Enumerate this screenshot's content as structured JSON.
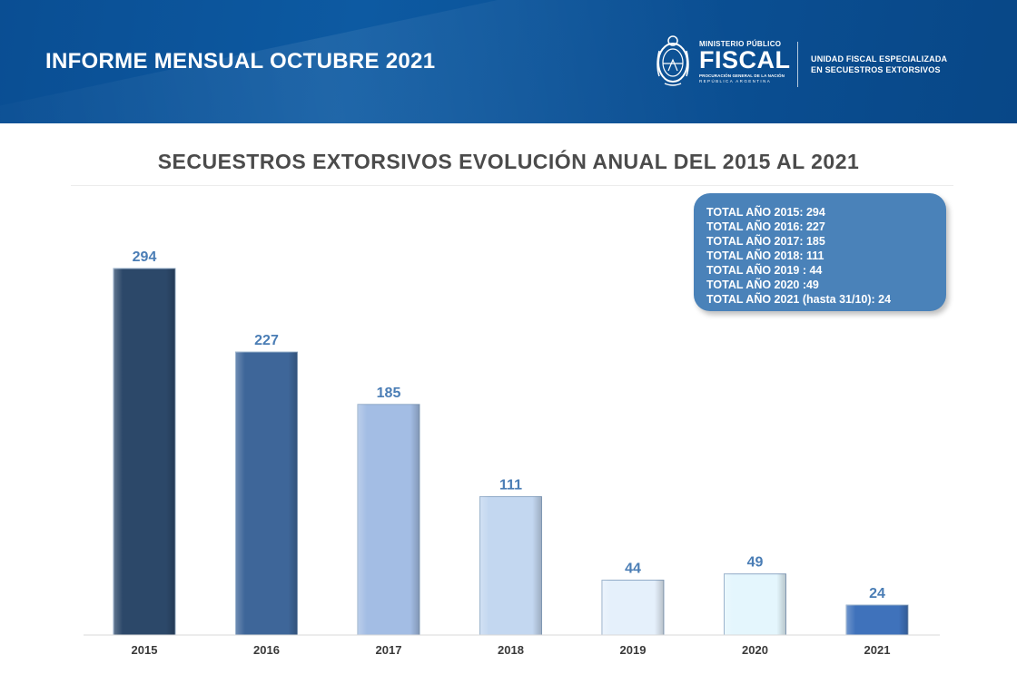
{
  "header": {
    "title": "INFORME MENSUAL OCTUBRE 2021",
    "logo": {
      "top_line": "MINISTERIO PÚBLICO",
      "main": "FISCAL",
      "sub_line": "PROCURACIÓN GENERAL DE LA NACIÓN",
      "country_line": "REPÚBLICA ARGENTINA"
    },
    "unit_line1": "UNIDAD FISCAL ESPECIALIZADA",
    "unit_line2": "EN SECUESTROS EXTORSIVOS"
  },
  "totals_box": {
    "lines": [
      "TOTAL AÑO 2015: 294",
      "TOTAL AÑO 2016: 227",
      "TOTAL AÑO 2017: 185",
      "TOTAL AÑO 2018: 111",
      "TOTAL AÑO 2019 : 44",
      "TOTAL AÑO 2020 :49",
      "TOTAL AÑO 2021 (hasta 31/10): 24"
    ]
  },
  "chart_data": {
    "type": "bar",
    "title": "SECUESTROS EXTORSIVOS EVOLUCIÓN ANUAL DEL 2015 AL 2021",
    "categories": [
      "2015",
      "2016",
      "2017",
      "2018",
      "2019",
      "2020",
      "2021"
    ],
    "values": [
      294,
      227,
      185,
      111,
      44,
      49,
      24
    ],
    "data_labels": [
      "294",
      "227",
      "185",
      "111",
      "44",
      "49",
      "24"
    ],
    "bar_colors": [
      "#2c4869",
      "#3e6699",
      "#a3bde4",
      "#c3d7f0",
      "#e5f0fb",
      "#e4f6fd",
      "#3f72bb"
    ],
    "label_color": "#4a7db5",
    "ylim": [
      0,
      300
    ],
    "grid": false,
    "legend": "none"
  }
}
